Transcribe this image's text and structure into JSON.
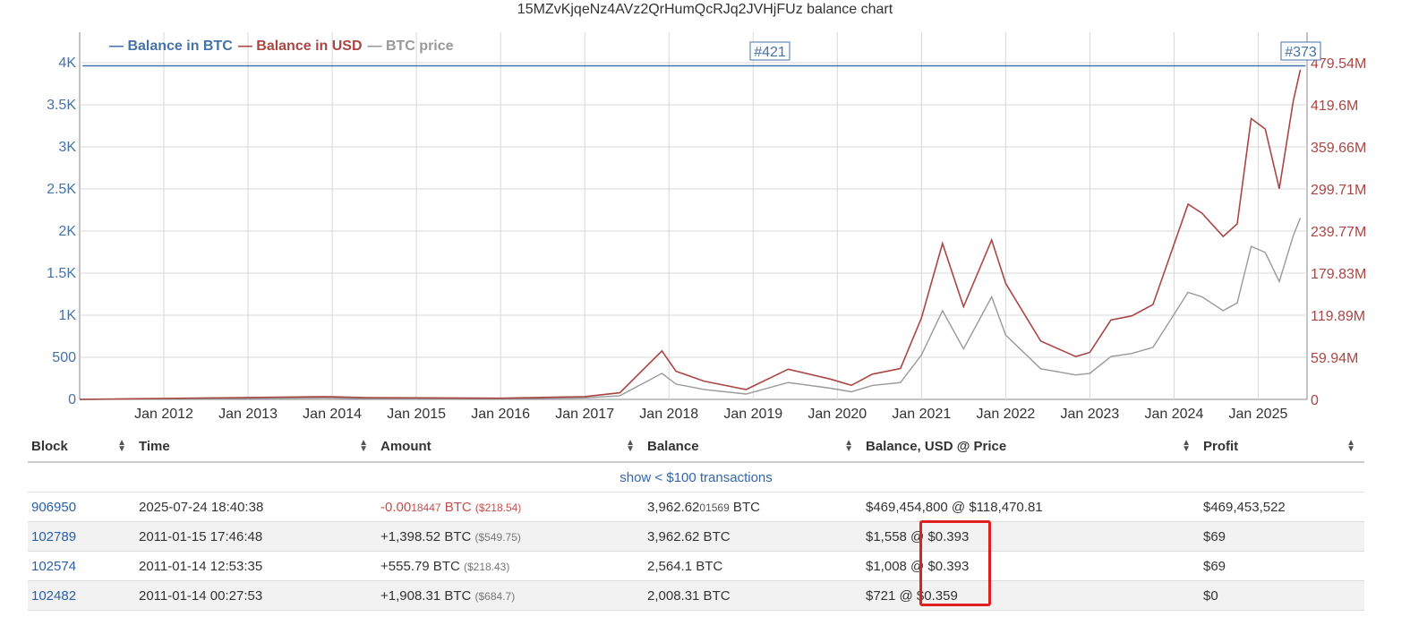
{
  "chart": {
    "title": "15MZvKjqeNz4AVz2QrHumQcRJq2JVHjFUz balance chart",
    "legend": [
      {
        "label": "— Balance in BTC",
        "color": "#4572a7"
      },
      {
        "label": "— Balance in USD",
        "color": "#aa4643"
      },
      {
        "label": "— BTC price",
        "color": "#999999"
      }
    ],
    "markers": [
      "#421",
      "#373"
    ]
  },
  "chart_data": {
    "type": "line",
    "title": "15MZvKjqeNz4AVz2QrHumQcRJq2JVHjFUz balance chart",
    "x_ticks": [
      "Jan 2012",
      "Jan 2013",
      "Jan 2014",
      "Jan 2015",
      "Jan 2016",
      "Jan 2017",
      "Jan 2018",
      "Jan 2019",
      "Jan 2020",
      "Jan 2021",
      "Jan 2022",
      "Jan 2023",
      "Jan 2024",
      "Jan 2025"
    ],
    "y_left_ticks": [
      "0",
      "500",
      "1K",
      "1.5K",
      "2K",
      "2.5K",
      "3K",
      "3.5K",
      "4K"
    ],
    "y_right_ticks": [
      "0",
      "59.94M",
      "119.89M",
      "179.83M",
      "239.77M",
      "299.71M",
      "359.66M",
      "419.6M",
      "479.54M"
    ],
    "y_left_range": [
      0,
      4000
    ],
    "y_right_range": [
      0,
      479540000
    ],
    "series": [
      {
        "name": "Balance in BTC",
        "color": "#4572a7",
        "x": [
          "2011-01-14",
          "2011-01-15",
          "2025-07-24"
        ],
        "values": [
          3962.62,
          3962.62,
          3962.62
        ]
      },
      {
        "name": "Balance in USD",
        "color": "#aa4643",
        "x": [
          "2011-01",
          "2013-12",
          "2014-06",
          "2016-01",
          "2017-01",
          "2017-06",
          "2017-12",
          "2018-02",
          "2018-06",
          "2018-12",
          "2019-06",
          "2019-12",
          "2020-03",
          "2020-06",
          "2020-10",
          "2021-01",
          "2021-04",
          "2021-07",
          "2021-11",
          "2022-01",
          "2022-06",
          "2022-11",
          "2023-01",
          "2023-04",
          "2023-07",
          "2023-10",
          "2024-03",
          "2024-05",
          "2024-08",
          "2024-10",
          "2024-12",
          "2025-02",
          "2025-04",
          "2025-06",
          "2025-07"
        ],
        "values": [
          1558,
          4000000,
          2500000,
          1700000,
          3900000,
          9500000,
          69000000,
          40000000,
          26000000,
          14000000,
          43000000,
          29000000,
          20000000,
          36000000,
          44000000,
          116000000,
          222000000,
          132000000,
          227000000,
          165000000,
          83000000,
          61000000,
          67000000,
          113000000,
          119000000,
          135000000,
          278000000,
          265000000,
          232000000,
          250000000,
          400000000,
          385000000,
          300000000,
          425000000,
          469454800
        ]
      },
      {
        "name": "BTC price",
        "color": "#999999",
        "x": [
          "2011-01",
          "2013-12",
          "2014-06",
          "2016-01",
          "2017-01",
          "2017-06",
          "2017-12",
          "2018-02",
          "2018-06",
          "2018-12",
          "2019-06",
          "2019-12",
          "2020-03",
          "2020-06",
          "2020-10",
          "2021-01",
          "2021-04",
          "2021-07",
          "2021-11",
          "2022-01",
          "2022-06",
          "2022-11",
          "2023-01",
          "2023-04",
          "2023-07",
          "2023-10",
          "2024-03",
          "2024-05",
          "2024-08",
          "2024-10",
          "2024-12",
          "2025-02",
          "2025-04",
          "2025-06",
          "2025-07"
        ],
        "values": [
          0.39,
          1000,
          600,
          430,
          990,
          2400,
          17000,
          10000,
          6500,
          3500,
          11000,
          7300,
          5000,
          9100,
          11000,
          29000,
          58000,
          33000,
          67000,
          42000,
          20000,
          16000,
          17000,
          28000,
          30000,
          34000,
          70000,
          67000,
          58000,
          63000,
          100000,
          96000,
          77000,
          107000,
          118470.81
        ]
      }
    ]
  },
  "table": {
    "headers": {
      "block": "Block",
      "time": "Time",
      "amount": "Amount",
      "balance": "Balance",
      "balance_usd": "Balance, USD @ Price",
      "profit": "Profit",
      "sort_icon": "updown-arrows-icon"
    },
    "show_more": "show < $100 transactions",
    "rows": [
      {
        "block": "906950",
        "time": "2025-07-24 18:40:38",
        "amount_main": "-0.00",
        "amount_fine": "18447",
        "amount_unit": " BTC",
        "amount_usd": "($218.54)",
        "amount_neg": true,
        "balance_main": "3,962.62",
        "balance_fine": "01569",
        "balance_unit": " BTC",
        "balance_usd": "$469,454,800 @ $118,470.81",
        "profit": "$469,453,522"
      },
      {
        "block": "102789",
        "time": "2011-01-15 17:46:48",
        "amount_main": "+1,398.52",
        "amount_fine": "",
        "amount_unit": " BTC",
        "amount_usd": "($549.75)",
        "amount_neg": false,
        "balance_main": "3,962.62",
        "balance_fine": "",
        "balance_unit": " BTC",
        "balance_usd": "$1,558 @ $0.393",
        "profit": "$69"
      },
      {
        "block": "102574",
        "time": "2011-01-14 12:53:35",
        "amount_main": "+555.79",
        "amount_fine": "",
        "amount_unit": " BTC",
        "amount_usd": "($218.43)",
        "amount_neg": false,
        "balance_main": "2,564.1",
        "balance_fine": "",
        "balance_unit": " BTC",
        "balance_usd": "$1,008 @ $0.393",
        "profit": "$69"
      },
      {
        "block": "102482",
        "time": "2011-01-14 00:27:53",
        "amount_main": "+1,908.31",
        "amount_fine": "",
        "amount_unit": " BTC",
        "amount_usd": "($684.7)",
        "amount_neg": false,
        "balance_main": "2,008.31",
        "balance_fine": "",
        "balance_unit": " BTC",
        "balance_usd": "$721 @ $0.359",
        "profit": "$0"
      }
    ]
  },
  "highlight_color": "#e02020"
}
